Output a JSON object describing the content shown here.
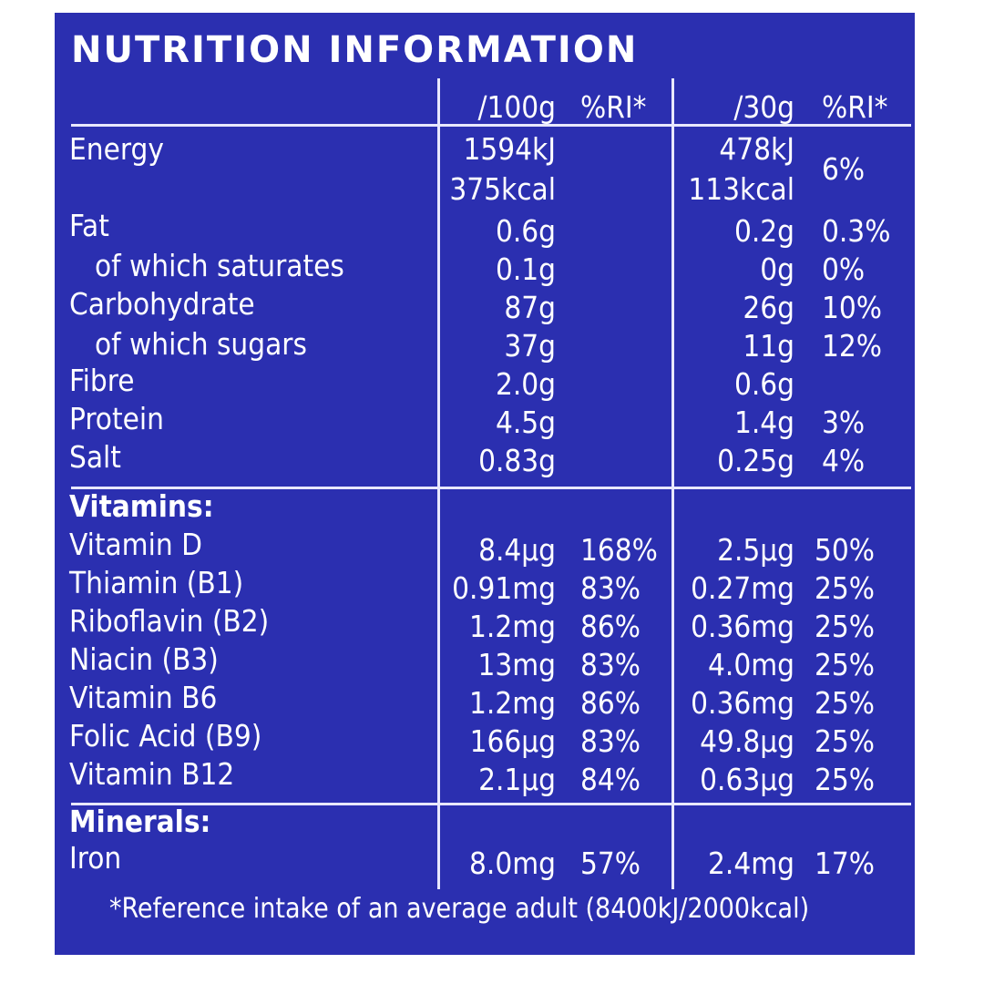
{
  "title": "NUTRITION INFORMATION",
  "headers": {
    "per100": "/100g",
    "ri100": "%RI*",
    "per30": "/30g",
    "ri30": "%RI*"
  },
  "rows": [
    {
      "label": "Energy",
      "v100": "1594kJ",
      "v100b": "375kcal",
      "ri100": "",
      "v30": "478kJ",
      "v30b": "113kcal",
      "ri30": "6%"
    },
    {
      "label": "Fat",
      "v100": "0.6g",
      "ri100": "",
      "v30": "0.2g",
      "ri30": "0.3%"
    },
    {
      "label": "of which saturates",
      "v100": "0.1g",
      "ri100": "",
      "v30": "0g",
      "ri30": "0%"
    },
    {
      "label": "Carbohydrate",
      "v100": "87g",
      "ri100": "",
      "v30": "26g",
      "ri30": "10%"
    },
    {
      "label": "of which sugars",
      "v100": "37g",
      "ri100": "",
      "v30": "11g",
      "ri30": "12%"
    },
    {
      "label": "Fibre",
      "v100": "2.0g",
      "ri100": "",
      "v30": "0.6g",
      "ri30": ""
    },
    {
      "label": "Protein",
      "v100": "4.5g",
      "ri100": "",
      "v30": "1.4g",
      "ri30": "3%"
    },
    {
      "label": "Salt",
      "v100": "0.83g",
      "ri100": "",
      "v30": "0.25g",
      "ri30": "4%"
    }
  ],
  "vitamins_heading": "Vitamins:",
  "vitamins": [
    {
      "label": "Vitamin D",
      "v100": "8.4µg",
      "ri100": "168%",
      "v30": "2.5µg",
      "ri30": "50%"
    },
    {
      "label": "Thiamin (B1)",
      "v100": "0.91mg",
      "ri100": "83%",
      "v30": "0.27mg",
      "ri30": "25%"
    },
    {
      "label": "Riboflavin (B2)",
      "v100": "1.2mg",
      "ri100": "86%",
      "v30": "0.36mg",
      "ri30": "25%"
    },
    {
      "label": "Niacin (B3)",
      "v100": "13mg",
      "ri100": "83%",
      "v30": "4.0mg",
      "ri30": "25%"
    },
    {
      "label": "Vitamin B6",
      "v100": "1.2mg",
      "ri100": "86%",
      "v30": "0.36mg",
      "ri30": "25%"
    },
    {
      "label": "Folic Acid (B9)",
      "v100": "166µg",
      "ri100": "83%",
      "v30": "49.8µg",
      "ri30": "25%"
    },
    {
      "label": "Vitamin B12",
      "v100": "2.1µg",
      "ri100": "84%",
      "v30": "0.63µg",
      "ri30": "25%"
    }
  ],
  "minerals_heading": "Minerals:",
  "minerals": [
    {
      "label": "Iron",
      "v100": "8.0mg",
      "ri100": "57%",
      "v30": "2.4mg",
      "ri30": "17%"
    }
  ],
  "footnote": "*Reference intake of an average adult (8400kJ/2000kcal)",
  "colors": {
    "panel": "#2b2fb0",
    "text": "#ffffff",
    "rule": "#e8e8ff"
  }
}
